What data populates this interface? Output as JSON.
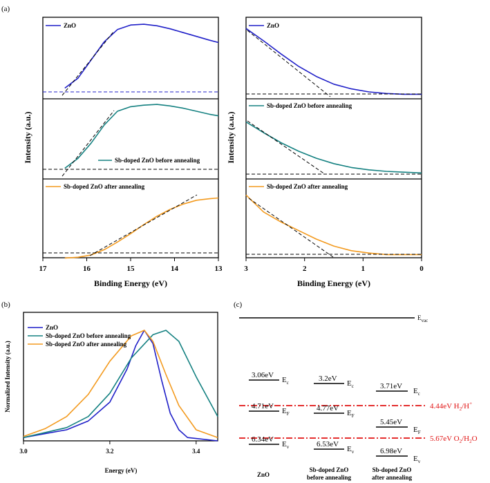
{
  "figure": {
    "panel_a_label": "(a)",
    "panel_b_label": "(b)",
    "panel_c_label": "(c)"
  },
  "colors": {
    "zno": "#1f1fc8",
    "sb_before": "#138080",
    "sb_after": "#f39a1e",
    "redox": "#e01010"
  },
  "chart_data": [
    {
      "type": "line",
      "panel": "a-left",
      "xlabel": "Binding Energy (eV)",
      "ylabel": "Intensity (a.u.)",
      "xlim": [
        17,
        13
      ],
      "x_ticks": [
        "17",
        "16",
        "15",
        "14",
        "13"
      ],
      "series": [
        {
          "name": "ZnO",
          "x": [
            16.5,
            16.2,
            15.9,
            15.6,
            15.3,
            15.0,
            14.7,
            14.4,
            14.1,
            13.8,
            13.5,
            13.2,
            13.0
          ],
          "y": [
            0.15,
            0.28,
            0.52,
            0.76,
            0.92,
            0.98,
            0.99,
            0.97,
            0.93,
            0.88,
            0.83,
            0.78,
            0.75
          ]
        },
        {
          "name": "Sb-doped ZnO before annealing",
          "x": [
            16.5,
            16.2,
            15.9,
            15.6,
            15.3,
            15.0,
            14.7,
            14.4,
            14.1,
            13.8,
            13.5,
            13.2,
            13.0
          ],
          "y": [
            0.15,
            0.28,
            0.48,
            0.72,
            0.9,
            0.96,
            0.98,
            0.99,
            0.97,
            0.94,
            0.9,
            0.86,
            0.84
          ]
        },
        {
          "name": "Sb-doped ZnO after annealing",
          "x": [
            16.5,
            16.2,
            15.9,
            15.6,
            15.3,
            15.0,
            14.7,
            14.4,
            14.1,
            13.8,
            13.5,
            13.2,
            13.0
          ],
          "y": [
            0.06,
            0.07,
            0.1,
            0.17,
            0.27,
            0.38,
            0.5,
            0.61,
            0.7,
            0.77,
            0.82,
            0.84,
            0.85
          ]
        }
      ]
    },
    {
      "type": "line",
      "panel": "a-right",
      "xlabel": "Binding Energy (eV)",
      "ylabel": "Intensity (a.u.)",
      "xlim": [
        3,
        0
      ],
      "x_ticks": [
        "3",
        "2",
        "1",
        "0"
      ],
      "series": [
        {
          "name": "ZnO",
          "x": [
            3.0,
            2.7,
            2.4,
            2.1,
            1.8,
            1.5,
            1.2,
            0.9,
            0.6,
            0.3,
            0.0
          ],
          "y": [
            0.9,
            0.74,
            0.57,
            0.41,
            0.28,
            0.18,
            0.12,
            0.08,
            0.06,
            0.05,
            0.05
          ]
        },
        {
          "name": "Sb-doped ZnO before annealing",
          "x": [
            3.0,
            2.7,
            2.4,
            2.1,
            1.8,
            1.5,
            1.2,
            0.9,
            0.6,
            0.3,
            0.0
          ],
          "y": [
            0.72,
            0.58,
            0.45,
            0.34,
            0.25,
            0.18,
            0.13,
            0.1,
            0.08,
            0.07,
            0.06
          ]
        },
        {
          "name": "Sb-doped ZnO after annealing",
          "x": [
            3.0,
            2.7,
            2.4,
            2.1,
            1.8,
            1.5,
            1.2,
            0.9,
            0.6,
            0.3,
            0.0
          ],
          "y": [
            0.82,
            0.6,
            0.47,
            0.36,
            0.25,
            0.16,
            0.1,
            0.07,
            0.05,
            0.05,
            0.05
          ]
        }
      ]
    },
    {
      "type": "line",
      "panel": "b",
      "xlabel": "Energy (eV)",
      "ylabel": "Normalized Intensity (a.u.)",
      "xlim": [
        3.0,
        3.45
      ],
      "x_ticks": [
        "3.0",
        "3.2",
        "3.4"
      ],
      "series": [
        {
          "name": "ZnO",
          "x": [
            3.0,
            3.1,
            3.15,
            3.2,
            3.24,
            3.26,
            3.28,
            3.3,
            3.32,
            3.34,
            3.36,
            3.38,
            3.45
          ],
          "y": [
            0.03,
            0.1,
            0.18,
            0.35,
            0.65,
            0.86,
            1.0,
            0.88,
            0.55,
            0.25,
            0.1,
            0.03,
            0.0
          ]
        },
        {
          "name": "Sb-doped ZnO before annealing",
          "x": [
            3.0,
            3.1,
            3.15,
            3.2,
            3.25,
            3.3,
            3.33,
            3.36,
            3.4,
            3.45
          ],
          "y": [
            0.03,
            0.12,
            0.22,
            0.43,
            0.75,
            0.96,
            1.0,
            0.9,
            0.58,
            0.22
          ]
        },
        {
          "name": "Sb-doped ZnO after annealing",
          "x": [
            3.0,
            3.05,
            3.1,
            3.15,
            3.2,
            3.25,
            3.28,
            3.3,
            3.33,
            3.36,
            3.4,
            3.45
          ],
          "y": [
            0.04,
            0.11,
            0.22,
            0.42,
            0.72,
            0.95,
            1.0,
            0.9,
            0.6,
            0.32,
            0.1,
            0.03
          ]
        }
      ]
    }
  ],
  "panel_a": {
    "left_top_legend": "ZnO",
    "left_mid_legend": "Sb-doped ZnO before annealing",
    "left_bot_legend": "Sb-doped ZnO after annealing",
    "right_top_legend": "ZnO",
    "right_mid_legend": "Sb-doped ZnO before annealing",
    "right_bot_legend": "Sb-doped ZnO after annealing",
    "left_ticks": [
      "17",
      "16",
      "15",
      "14",
      "13"
    ],
    "right_ticks": [
      "3",
      "2",
      "1",
      "0"
    ],
    "xlabel": "Binding Energy (eV)",
    "ylabel": "Intensity (a.u.)"
  },
  "panel_b": {
    "legend": [
      "ZnO",
      "Sb-doped ZnO before annealing",
      "Sb-doped ZnO after annealing"
    ],
    "ticks": [
      "3.0",
      "3.2",
      "3.4"
    ],
    "xlabel": "Energy (eV)",
    "ylabel": "Normalized Intensity (a.u.)"
  },
  "panel_c": {
    "vacuum": {
      "sym": "E",
      "sub": "vac"
    },
    "redox": [
      {
        "value": "4.44eV H",
        "sub1": "2",
        "mid": "/H",
        "sup": "+"
      },
      {
        "value": "5.67eV O",
        "sub1": "2",
        "mid": "/H",
        "sub2": "2",
        "end": "O"
      }
    ],
    "materials": [
      {
        "name": [
          "ZnO"
        ],
        "ec": "3.06eV",
        "ef": "4.71eV",
        "ev": "6.34eV"
      },
      {
        "name": [
          "Sb-doped ZnO",
          "before annealing"
        ],
        "ec": "3.2eV",
        "ef": "4.77eV",
        "ev": "6.53eV"
      },
      {
        "name": [
          "Sb-doped ZnO",
          "after annealing"
        ],
        "ec": "3.71eV",
        "ef": "5.45eV",
        "ev": "6.98eV"
      }
    ],
    "level_sym": "E",
    "subs": {
      "c": "c",
      "f": "F",
      "v": "v"
    }
  }
}
